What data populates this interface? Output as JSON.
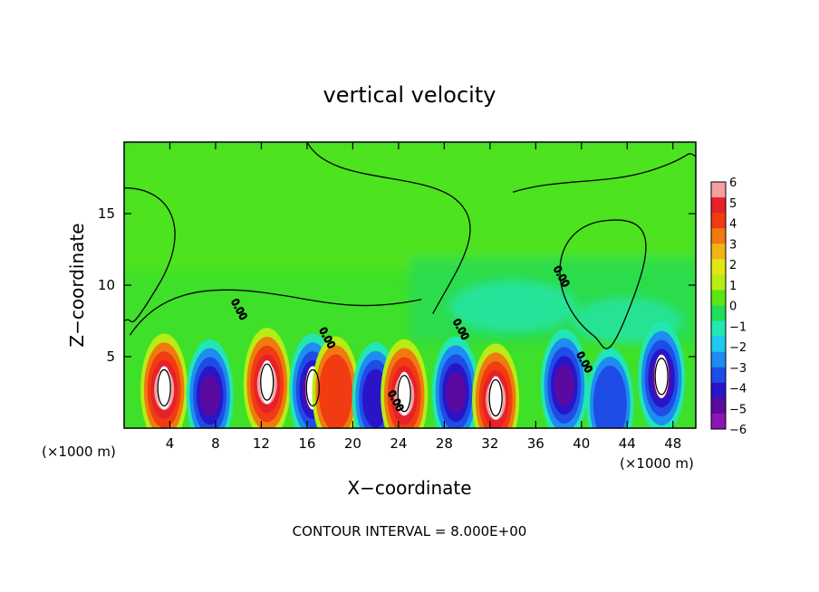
{
  "chart_data": {
    "type": "heatmap",
    "title": "vertical velocity",
    "xlabel": "X−coordinate",
    "ylabel": "Z−coordinate",
    "x_unit_left": "(×1000 m)",
    "x_unit_right": "(×1000 m)",
    "footer": "CONTOUR INTERVAL = 8.000E+00",
    "xlim": [
      0,
      50
    ],
    "ylim": [
      0,
      20
    ],
    "x_ticks": [
      "4",
      "8",
      "12",
      "16",
      "20",
      "24",
      "28",
      "32",
      "36",
      "40",
      "44",
      "48"
    ],
    "x_tick_values": [
      4,
      8,
      12,
      16,
      20,
      24,
      28,
      32,
      36,
      40,
      44,
      48
    ],
    "y_ticks": [
      "5",
      "10",
      "15"
    ],
    "y_tick_values": [
      5,
      10,
      15
    ],
    "contour_labels": [
      "0.00",
      "0.00",
      "0.00",
      "0.00",
      "0.00",
      "0.00"
    ],
    "colorbar": {
      "range": [
        -6,
        6
      ],
      "labels": [
        "6",
        "5",
        "4",
        "3",
        "2",
        "1",
        "0",
        "−1",
        "−2",
        "−3",
        "−4",
        "−5",
        "−6"
      ],
      "colors": [
        "#f4a0a0",
        "#e8202a",
        "#f03c10",
        "#f07a10",
        "#f0b414",
        "#e4e614",
        "#b8ec14",
        "#5ae614",
        "#22dc5a",
        "#22e6b4",
        "#1ec8f0",
        "#1e8cf0",
        "#1e4ce6",
        "#2a14c8",
        "#5a0aa0",
        "#8c14b4"
      ]
    },
    "features": [
      {
        "x": 3.5,
        "z": 3.2,
        "w": 6
      },
      {
        "x": 7.5,
        "z": 2.8,
        "w": -5
      },
      {
        "x": 12.5,
        "z": 3.6,
        "w": 6
      },
      {
        "x": 16.5,
        "z": 3.2,
        "w": -6
      },
      {
        "x": 18.5,
        "z": 3.0,
        "w": 4
      },
      {
        "x": 22.0,
        "z": 2.6,
        "w": -4
      },
      {
        "x": 24.5,
        "z": 2.8,
        "w": 6
      },
      {
        "x": 29.0,
        "z": 3.0,
        "w": -5
      },
      {
        "x": 32.5,
        "z": 2.5,
        "w": 6
      },
      {
        "x": 38.5,
        "z": 3.5,
        "w": -5
      },
      {
        "x": 42.5,
        "z": 2.2,
        "w": -3
      },
      {
        "x": 47.0,
        "z": 4.0,
        "w": -6
      }
    ]
  }
}
